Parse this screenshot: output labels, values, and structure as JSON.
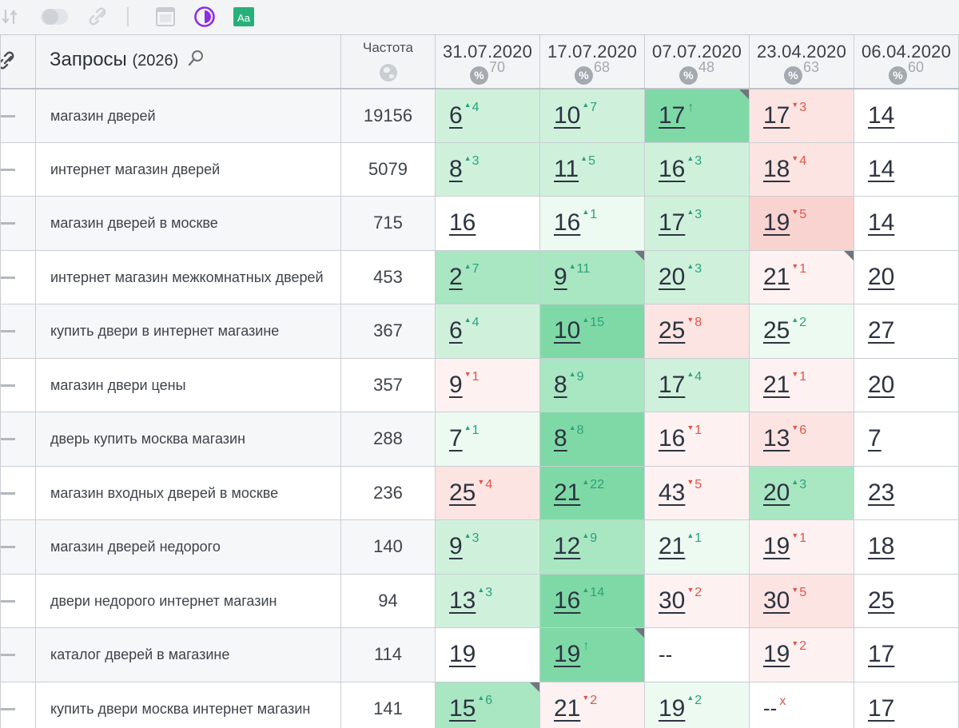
{
  "toolbar": {
    "icons": [
      "sort-icon",
      "toggle-icon",
      "link-icon",
      "calendar-icon",
      "contrast-icon",
      "font-aa-icon"
    ],
    "font_label": "Aa"
  },
  "header": {
    "queries_label": "Запросы",
    "queries_count": "(2026)",
    "frequency_label": "Частота"
  },
  "dates": [
    {
      "date": "31.07.2020",
      "pct": "70"
    },
    {
      "date": "17.07.2020",
      "pct": "68"
    },
    {
      "date": "07.07.2020",
      "pct": "48"
    },
    {
      "date": "23.04.2020",
      "pct": "63"
    },
    {
      "date": "06.04.2020",
      "pct": "60"
    }
  ],
  "colors": {
    "accent_purple": "#8e2de2",
    "font_icon_green": "#27b07a",
    "up": "#2aa27a",
    "down": "#e0534a"
  },
  "rows": [
    {
      "query": "магазин дверей",
      "freq": "19156",
      "cells": [
        {
          "v": "6",
          "d": "4",
          "dir": "up",
          "bg": "bg-g1"
        },
        {
          "v": "10",
          "d": "7",
          "dir": "up",
          "bg": "bg-g1"
        },
        {
          "v": "17",
          "d": "↑",
          "dir": "up",
          "bg": "bg-g3",
          "corner": true
        },
        {
          "v": "17",
          "d": "3",
          "dir": "down",
          "bg": "bg-r1"
        },
        {
          "v": "14",
          "d": "",
          "dir": "",
          "bg": "bg-w"
        }
      ]
    },
    {
      "query": "интернет магазин дверей",
      "freq": "5079",
      "cells": [
        {
          "v": "8",
          "d": "3",
          "dir": "up",
          "bg": "bg-g1"
        },
        {
          "v": "11",
          "d": "5",
          "dir": "up",
          "bg": "bg-g1"
        },
        {
          "v": "16",
          "d": "3",
          "dir": "up",
          "bg": "bg-g1"
        },
        {
          "v": "18",
          "d": "4",
          "dir": "down",
          "bg": "bg-r1"
        },
        {
          "v": "14",
          "d": "",
          "dir": "",
          "bg": "bg-w"
        }
      ]
    },
    {
      "query": "магазин дверей в москве",
      "freq": "715",
      "cells": [
        {
          "v": "16",
          "d": "",
          "dir": "",
          "bg": "bg-w"
        },
        {
          "v": "16",
          "d": "1",
          "dir": "up",
          "bg": "bg-g0"
        },
        {
          "v": "17",
          "d": "3",
          "dir": "up",
          "bg": "bg-g1"
        },
        {
          "v": "19",
          "d": "5",
          "dir": "down",
          "bg": "bg-r2"
        },
        {
          "v": "14",
          "d": "",
          "dir": "",
          "bg": "bg-w"
        }
      ]
    },
    {
      "query": "интернет магазин межкомнатных дверей",
      "freq": "453",
      "cells": [
        {
          "v": "2",
          "d": "7",
          "dir": "up",
          "bg": "bg-g2"
        },
        {
          "v": "9",
          "d": "11",
          "dir": "up",
          "bg": "bg-g2",
          "corner": true
        },
        {
          "v": "20",
          "d": "3",
          "dir": "up",
          "bg": "bg-g1"
        },
        {
          "v": "21",
          "d": "1",
          "dir": "down",
          "bg": "bg-r0",
          "corner": true
        },
        {
          "v": "20",
          "d": "",
          "dir": "",
          "bg": "bg-w"
        }
      ]
    },
    {
      "query": "купить двери в интернет магазине",
      "freq": "367",
      "cells": [
        {
          "v": "6",
          "d": "4",
          "dir": "up",
          "bg": "bg-g1"
        },
        {
          "v": "10",
          "d": "15",
          "dir": "up",
          "bg": "bg-g3"
        },
        {
          "v": "25",
          "d": "8",
          "dir": "down",
          "bg": "bg-r1"
        },
        {
          "v": "25",
          "d": "2",
          "dir": "up",
          "bg": "bg-g0"
        },
        {
          "v": "27",
          "d": "",
          "dir": "",
          "bg": "bg-w"
        }
      ]
    },
    {
      "query": "магазин двери цены",
      "freq": "357",
      "cells": [
        {
          "v": "9",
          "d": "1",
          "dir": "down",
          "bg": "bg-r0"
        },
        {
          "v": "8",
          "d": "9",
          "dir": "up",
          "bg": "bg-g2"
        },
        {
          "v": "17",
          "d": "4",
          "dir": "up",
          "bg": "bg-g1"
        },
        {
          "v": "21",
          "d": "1",
          "dir": "down",
          "bg": "bg-r0"
        },
        {
          "v": "20",
          "d": "",
          "dir": "",
          "bg": "bg-w"
        }
      ]
    },
    {
      "query": "дверь купить москва магазин",
      "freq": "288",
      "cells": [
        {
          "v": "7",
          "d": "1",
          "dir": "up",
          "bg": "bg-g0"
        },
        {
          "v": "8",
          "d": "8",
          "dir": "up",
          "bg": "bg-g3"
        },
        {
          "v": "16",
          "d": "1",
          "dir": "down",
          "bg": "bg-r0"
        },
        {
          "v": "13",
          "d": "6",
          "dir": "down",
          "bg": "bg-r1"
        },
        {
          "v": "7",
          "d": "",
          "dir": "",
          "bg": "bg-w"
        }
      ]
    },
    {
      "query": "магазин входных дверей в москве",
      "freq": "236",
      "cells": [
        {
          "v": "25",
          "d": "4",
          "dir": "down",
          "bg": "bg-r1"
        },
        {
          "v": "21",
          "d": "22",
          "dir": "up",
          "bg": "bg-g3"
        },
        {
          "v": "43",
          "d": "5",
          "dir": "down",
          "bg": "bg-r0"
        },
        {
          "v": "20",
          "d": "3",
          "dir": "up",
          "bg": "bg-g2"
        },
        {
          "v": "23",
          "d": "",
          "dir": "",
          "bg": "bg-w"
        }
      ]
    },
    {
      "query": "магазин дверей недорого",
      "freq": "140",
      "cells": [
        {
          "v": "9",
          "d": "3",
          "dir": "up",
          "bg": "bg-g1"
        },
        {
          "v": "12",
          "d": "9",
          "dir": "up",
          "bg": "bg-g2"
        },
        {
          "v": "21",
          "d": "1",
          "dir": "up",
          "bg": "bg-g0"
        },
        {
          "v": "19",
          "d": "1",
          "dir": "down",
          "bg": "bg-r0"
        },
        {
          "v": "18",
          "d": "",
          "dir": "",
          "bg": "bg-w"
        }
      ]
    },
    {
      "query": "двери недорого интернет магазин",
      "freq": "94",
      "cells": [
        {
          "v": "13",
          "d": "3",
          "dir": "up",
          "bg": "bg-g1"
        },
        {
          "v": "16",
          "d": "14",
          "dir": "up",
          "bg": "bg-g3"
        },
        {
          "v": "30",
          "d": "2",
          "dir": "down",
          "bg": "bg-r0"
        },
        {
          "v": "30",
          "d": "5",
          "dir": "down",
          "bg": "bg-r1"
        },
        {
          "v": "25",
          "d": "",
          "dir": "",
          "bg": "bg-w"
        }
      ]
    },
    {
      "query": "каталог дверей в магазине",
      "freq": "114",
      "cells": [
        {
          "v": "19",
          "d": "",
          "dir": "",
          "bg": "bg-w"
        },
        {
          "v": "19",
          "d": "↑",
          "dir": "up",
          "bg": "bg-g3",
          "corner": true
        },
        {
          "v": "--",
          "d": "",
          "dir": "",
          "bg": "bg-w",
          "nolink": true
        },
        {
          "v": "19",
          "d": "2",
          "dir": "down",
          "bg": "bg-r0"
        },
        {
          "v": "17",
          "d": "",
          "dir": "",
          "bg": "bg-w"
        }
      ]
    },
    {
      "query": "купить двери москва интернет магазин",
      "freq": "141",
      "cells": [
        {
          "v": "15",
          "d": "6",
          "dir": "up",
          "bg": "bg-g2",
          "corner": true
        },
        {
          "v": "21",
          "d": "2",
          "dir": "down",
          "bg": "bg-r0"
        },
        {
          "v": "19",
          "d": "2",
          "dir": "up",
          "bg": "bg-g0"
        },
        {
          "v": "--",
          "d": "x",
          "dir": "down",
          "bg": "bg-w",
          "nolink": true
        },
        {
          "v": "17",
          "d": "",
          "dir": "",
          "bg": "bg-w"
        }
      ]
    }
  ]
}
